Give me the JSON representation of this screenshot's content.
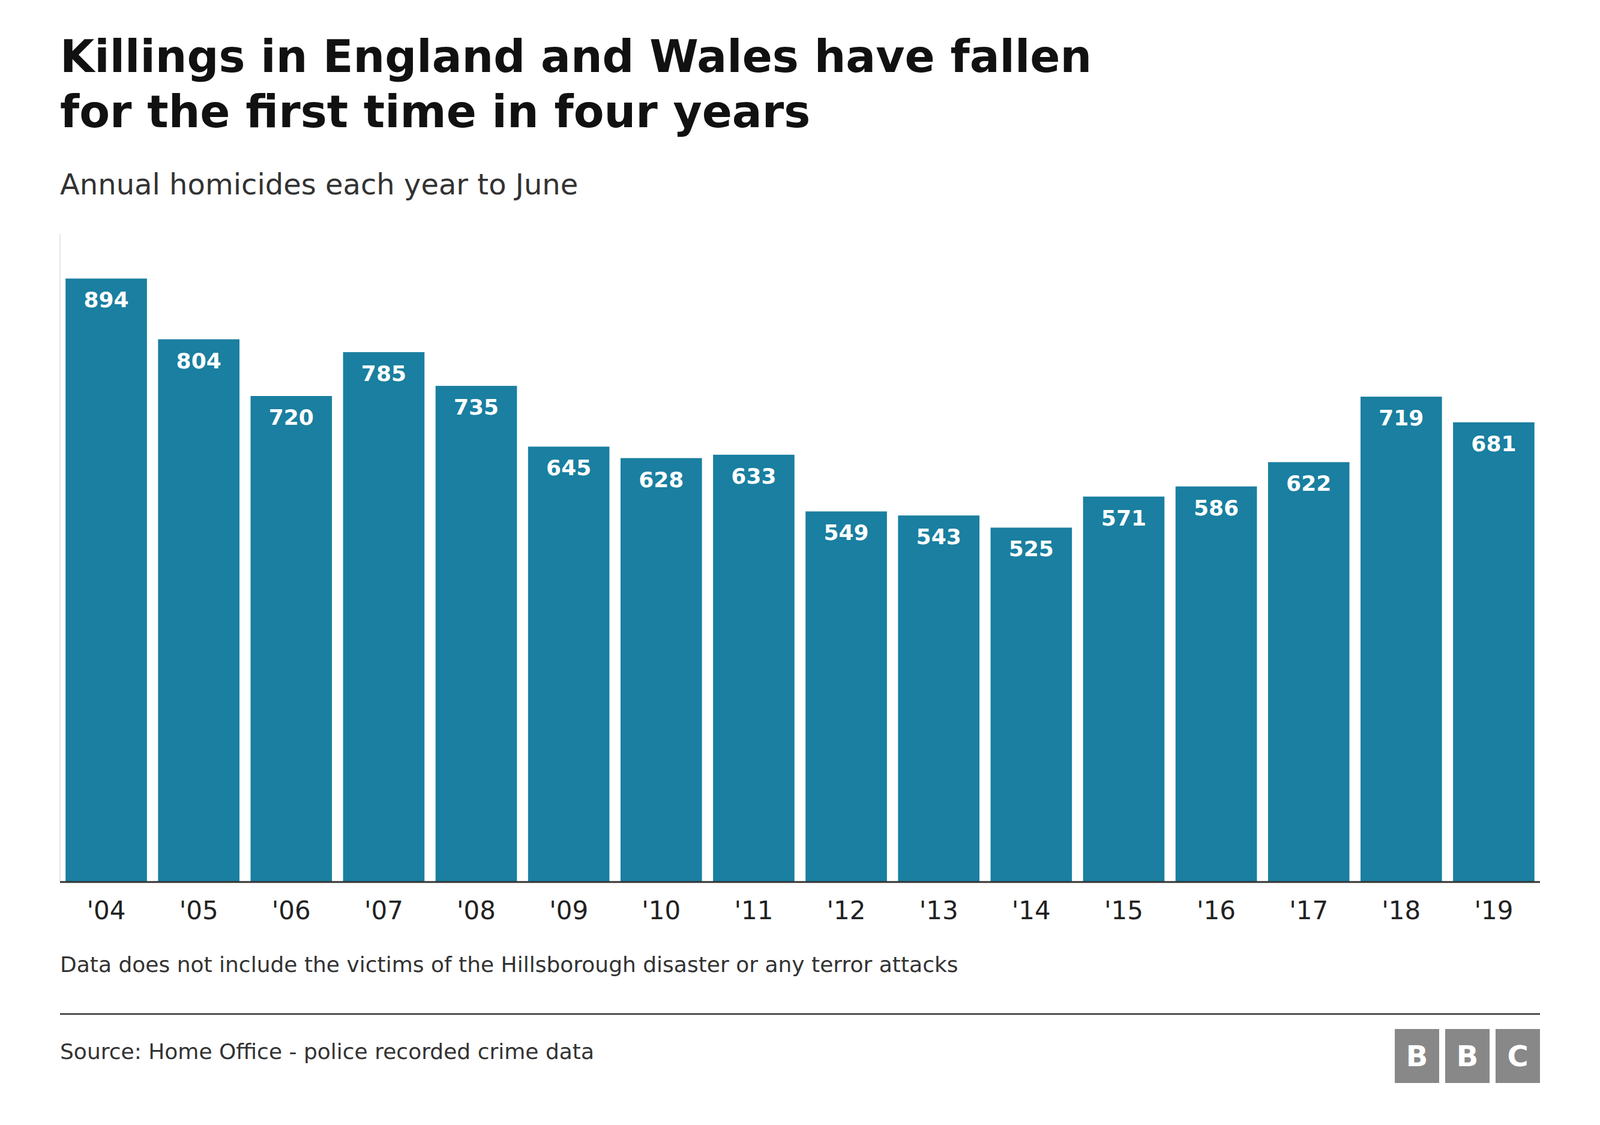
{
  "chart_data": {
    "type": "bar",
    "title": [
      "Killings in England and Wales have fallen",
      "for the first time in four years"
    ],
    "subtitle": "Annual homicides each year to June",
    "categories": [
      "'04",
      "'05",
      "'06",
      "'07",
      "'08",
      "'09",
      "'10",
      "'11",
      "'12",
      "'13",
      "'14",
      "'15",
      "'16",
      "'17",
      "'18",
      "'19"
    ],
    "values": [
      894,
      804,
      720,
      785,
      735,
      645,
      628,
      633,
      549,
      543,
      525,
      571,
      586,
      622,
      719,
      681
    ],
    "color": "#1a7fa0",
    "ylim": [
      0,
      960
    ],
    "data_labels": true,
    "tick_labels": "x",
    "grid": false,
    "footnote": "Data does not include the victims of the Hillsborough disaster or any terror attacks",
    "source": "Source: Home Office - police recorded crime data",
    "logo": [
      "B",
      "B",
      "C"
    ]
  }
}
